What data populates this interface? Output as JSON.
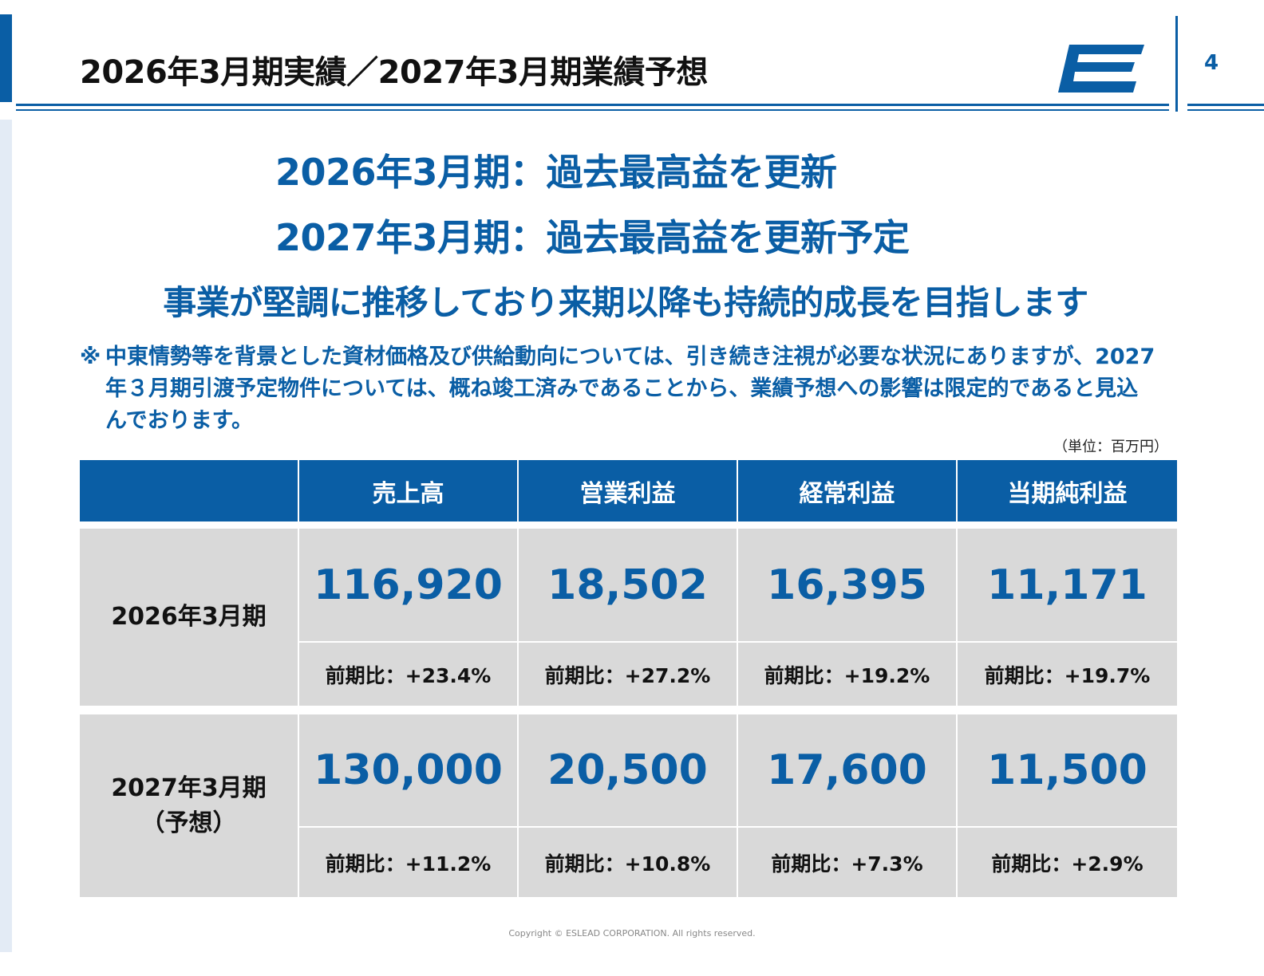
{
  "slide": {
    "title": "2026年3月期実績／2027年3月期業績予想",
    "page_number": "4",
    "headline1": "2026年3月期：過去最高益を更新",
    "headline2": "2027年3月期：過去最高益を更新予定",
    "tagline": "事業が堅調に推移しており来期以降も持続的成長を目指します",
    "note_mark": "※",
    "note_text": "中東情勢等を背景とした資材価格及び供給動向については、引き続き注視が必要な状況にありますが、2027年３月期引渡予定物件については、概ね竣工済みであることから、業績予想への影響は限定的であると見込んでおります。",
    "unit": "（単位：百万円）",
    "footer": "Copyright © ESLEAD CORPORATION. All rights reserved."
  },
  "colors": {
    "brand_blue": "#0a5ea5",
    "cell_gray": "#d9d9d9"
  },
  "table": {
    "columns": [
      "売上高",
      "営業利益",
      "経常利益",
      "当期純利益"
    ],
    "rows": [
      {
        "label": "2026年3月期",
        "sublabel": "",
        "values": [
          "116,920",
          "18,502",
          "16,395",
          "11,171"
        ],
        "changes": [
          "前期比：+23.4%",
          "前期比：+27.2%",
          "前期比：+19.2%",
          "前期比：+19.7%"
        ]
      },
      {
        "label": "2027年3月期",
        "sublabel": "（予想）",
        "values": [
          "130,000",
          "20,500",
          "17,600",
          "11,500"
        ],
        "changes": [
          "前期比：+11.2%",
          "前期比：+10.8%",
          "前期比：+7.3%",
          "前期比：+2.9%"
        ]
      }
    ]
  }
}
